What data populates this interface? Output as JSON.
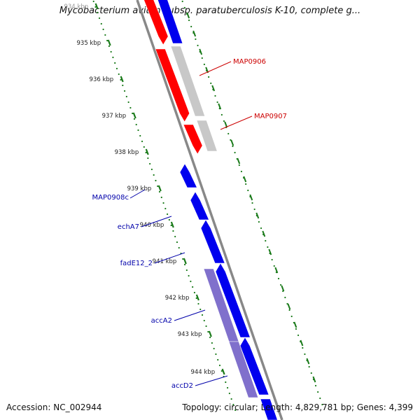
{
  "title": "Mycobacterium avium subsp. paratuberculosis K-10, complete g...",
  "footer": {
    "accession": "Accession: NC_002944",
    "summary": "Topology: circular; Length: 4,829,781 bp; Genes: 4,399"
  },
  "ticks": [
    {
      "label": "934 kbp"
    },
    {
      "label": "935 kbp"
    },
    {
      "label": "936 kbp"
    },
    {
      "label": "937 kbp"
    },
    {
      "label": "938 kbp"
    },
    {
      "label": "939 kbp"
    },
    {
      "label": "940 kbp"
    },
    {
      "label": "941 kbp"
    },
    {
      "label": "942 kbp"
    },
    {
      "label": "943 kbp"
    },
    {
      "label": "944 kbp"
    }
  ],
  "gene_labels": {
    "forward": [
      "MAP0906",
      "MAP0907"
    ],
    "reverse": [
      "MAP0908c",
      "echA7",
      "fadE12_2",
      "accA2",
      "accD2"
    ]
  },
  "colors": {
    "forward_gene": "#ff0000",
    "reverse_gene": "#0000ee",
    "forward_rna": "#c8c8c8",
    "reverse_rna": "#8070cc",
    "backbone": "#888888",
    "tick_green": "#1a7a1a",
    "forward_label": "#cc0000",
    "reverse_label": "#0000aa"
  }
}
